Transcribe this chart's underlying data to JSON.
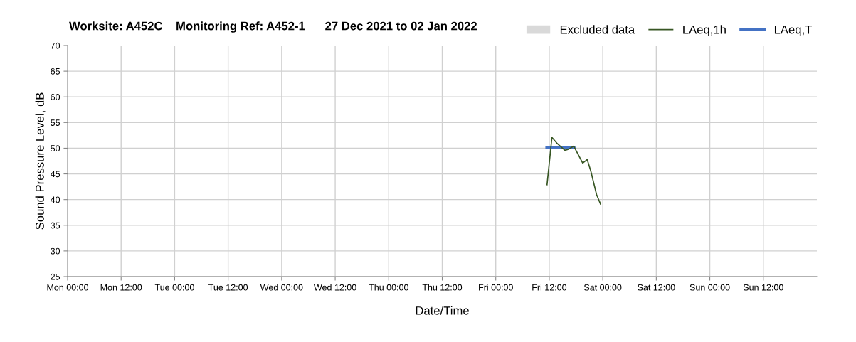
{
  "chart_data": {
    "type": "line",
    "title": "Worksite: A452C    Monitoring Ref: A452-1      27 Dec 2021 to 02 Jan 2022",
    "xlabel": "Date/Time",
    "ylabel": "Sound Pressure Level, dB",
    "series": [
      {
        "name": "Excluded data",
        "type": "area",
        "color": "#d9d9d9"
      },
      {
        "name": "LAeq,1h",
        "color": "#375623",
        "x": [
          "2021-12-31T11:30",
          "2021-12-31T12:36",
          "2021-12-31T13:48",
          "2021-12-31T15:30",
          "2021-12-31T16:18",
          "2021-12-31T17:30",
          "2021-12-31T19:30",
          "2021-12-31T20:30",
          "2021-12-31T21:18",
          "2021-12-31T22:36",
          "2021-12-31T23:30"
        ],
        "values": [
          42.9,
          52.1,
          50.9,
          49.6,
          49.8,
          50.4,
          47.1,
          47.8,
          45.6,
          41.0,
          39.1
        ]
      },
      {
        "name": "LAeq,T",
        "color": "#4472c4",
        "x": [
          "2021-12-31T11:24",
          "2021-12-31T17:36"
        ],
        "values": [
          50.1,
          50.1
        ]
      }
    ],
    "xlim": [
      "2021-12-27T00:00",
      "2022-01-03T00:00"
    ],
    "xticks": [
      {
        "value": "2021-12-27T00:00",
        "label": "Mon 00:00"
      },
      {
        "value": "2021-12-27T12:00",
        "label": "Mon 12:00"
      },
      {
        "value": "2021-12-28T00:00",
        "label": "Tue 00:00"
      },
      {
        "value": "2021-12-28T12:00",
        "label": "Tue 12:00"
      },
      {
        "value": "2021-12-29T00:00",
        "label": "Wed 00:00"
      },
      {
        "value": "2021-12-29T12:00",
        "label": "Wed 12:00"
      },
      {
        "value": "2021-12-30T00:00",
        "label": "Thu 00:00"
      },
      {
        "value": "2021-12-30T12:00",
        "label": "Thu 12:00"
      },
      {
        "value": "2021-12-31T00:00",
        "label": "Fri 00:00"
      },
      {
        "value": "2021-12-31T12:00",
        "label": "Fri 12:00"
      },
      {
        "value": "2022-01-01T00:00",
        "label": "Sat 00:00"
      },
      {
        "value": "2022-01-01T12:00",
        "label": "Sat 12:00"
      },
      {
        "value": "2022-01-02T00:00",
        "label": "Sun 00:00"
      },
      {
        "value": "2022-01-02T12:00",
        "label": "Sun 12:00"
      }
    ],
    "ylim": [
      25,
      70
    ],
    "yticks": [
      25,
      30,
      35,
      40,
      45,
      50,
      55,
      60,
      65,
      70
    ],
    "grid": true,
    "legend": "top right",
    "marker": "none",
    "line_style": "solid"
  }
}
